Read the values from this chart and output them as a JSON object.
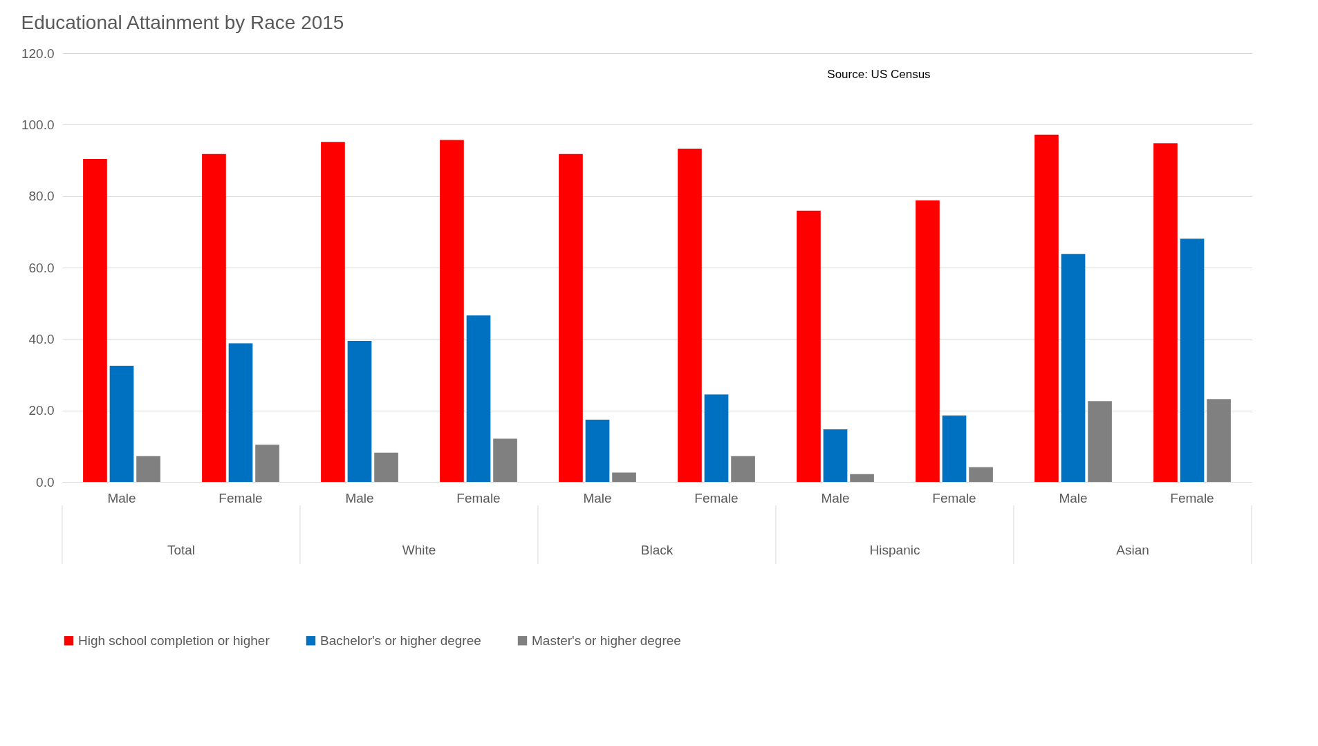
{
  "chart_data": {
    "type": "bar",
    "title": "Educational Attainment by Race 2015",
    "categories": [
      "Male",
      "Female",
      "Male",
      "Female",
      "Male",
      "Female",
      "Male",
      "Female",
      "Male",
      "Female"
    ],
    "series": [
      {
        "name": "High school completion or higher",
        "color": "#ff0000",
        "values": [
          90.4,
          91.8,
          95.2,
          95.7,
          91.8,
          93.3,
          75.9,
          78.8,
          97.2,
          94.8
        ]
      },
      {
        "name": "Bachelor's or higher degree",
        "color": "#0070c0",
        "values": [
          32.5,
          38.8,
          39.5,
          46.6,
          17.4,
          24.5,
          14.7,
          18.6,
          63.8,
          68.1
        ]
      },
      {
        "name": "Master's or higher degree",
        "color": "#808080",
        "values": [
          7.2,
          10.4,
          8.2,
          12.1,
          2.6,
          7.2,
          2.2,
          4.1,
          22.6,
          23.2
        ]
      }
    ],
    "ylim": [
      0,
      120
    ],
    "yticks": [
      {
        "value": 0,
        "label": "0.0"
      },
      {
        "value": 20,
        "label": "20.0"
      },
      {
        "value": 40,
        "label": "40.0"
      },
      {
        "value": 60,
        "label": "60.0"
      },
      {
        "value": 80,
        "label": "80.0"
      },
      {
        "value": 100,
        "label": "100.0"
      },
      {
        "value": 120,
        "label": "120.0"
      }
    ],
    "grid": "y",
    "legend": "bottom",
    "annotations": [
      "Source: US Census",
      "Total",
      "White",
      "Black",
      "Hispanic",
      "Asian"
    ]
  }
}
